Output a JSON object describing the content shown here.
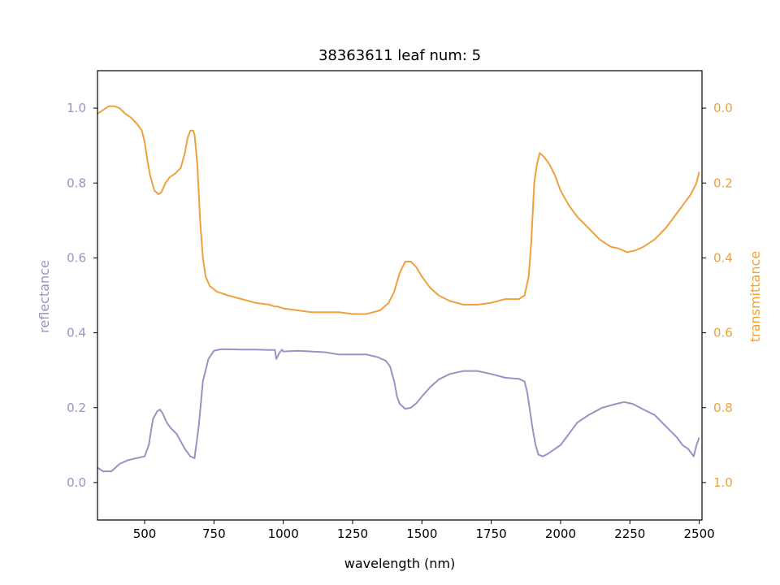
{
  "chart_data": {
    "type": "line",
    "title": "38363611 leaf num: 5",
    "xlabel": "wavelength (nm)",
    "ylabel": "reflectance",
    "ylabel_right": "transmittance",
    "xlim": [
      330,
      2510
    ],
    "ylim": [
      -0.1,
      1.1
    ],
    "ylim_right": [
      1.1,
      -0.1
    ],
    "right_axis_inverted": true,
    "grid": false,
    "x_ticks": [
      500,
      750,
      1000,
      1250,
      1500,
      1750,
      2000,
      2250,
      2500
    ],
    "x_tick_labels": [
      "500",
      "750",
      "1000",
      "1250",
      "1500",
      "1750",
      "2000",
      "2250",
      "2500"
    ],
    "y_ticks": [
      0.0,
      0.2,
      0.4,
      0.6,
      0.8,
      1.0
    ],
    "y_tick_labels": [
      "0.0",
      "0.2",
      "0.4",
      "0.6",
      "0.8",
      "1.0"
    ],
    "y_ticks_right": [
      0.0,
      0.2,
      0.4,
      0.6,
      0.8,
      1.0
    ],
    "y_tick_labels_right": [
      "0.0",
      "0.2",
      "0.4",
      "0.6",
      "0.8",
      "1.0"
    ],
    "colors": {
      "reflectance": "#9893c4",
      "transmittance": "#eea13d",
      "axis": "#000000"
    },
    "series": [
      {
        "axis": "left",
        "color": "#9893c4",
        "x": [
          330,
          350,
          380,
          410,
          440,
          470,
          500,
          515,
          530,
          545,
          555,
          565,
          580,
          595,
          615,
          630,
          645,
          665,
          680,
          695,
          710,
          730,
          750,
          775,
          800,
          850,
          900,
          950,
          970,
          975,
          985,
          995,
          1000,
          1050,
          1100,
          1150,
          1200,
          1250,
          1300,
          1340,
          1370,
          1385,
          1400,
          1410,
          1420,
          1440,
          1460,
          1480,
          1500,
          1530,
          1560,
          1600,
          1650,
          1700,
          1750,
          1800,
          1850,
          1870,
          1880,
          1890,
          1900,
          1905,
          1910,
          1920,
          1935,
          1950,
          1970,
          2000,
          2030,
          2060,
          2100,
          2150,
          2200,
          2230,
          2260,
          2300,
          2340,
          2380,
          2420,
          2440,
          2460,
          2480,
          2490,
          2500
        ],
        "y": [
          0.04,
          0.03,
          0.03,
          0.05,
          0.06,
          0.065,
          0.07,
          0.1,
          0.17,
          0.19,
          0.195,
          0.185,
          0.16,
          0.145,
          0.13,
          0.11,
          0.09,
          0.07,
          0.065,
          0.15,
          0.27,
          0.33,
          0.352,
          0.356,
          0.356,
          0.355,
          0.355,
          0.354,
          0.354,
          0.33,
          0.345,
          0.355,
          0.35,
          0.352,
          0.35,
          0.348,
          0.342,
          0.342,
          0.342,
          0.335,
          0.325,
          0.31,
          0.27,
          0.23,
          0.21,
          0.197,
          0.2,
          0.212,
          0.23,
          0.255,
          0.275,
          0.29,
          0.298,
          0.298,
          0.29,
          0.28,
          0.277,
          0.27,
          0.24,
          0.19,
          0.14,
          0.12,
          0.1,
          0.075,
          0.07,
          0.075,
          0.085,
          0.1,
          0.13,
          0.16,
          0.18,
          0.2,
          0.21,
          0.215,
          0.21,
          0.195,
          0.18,
          0.15,
          0.12,
          0.1,
          0.09,
          0.07,
          0.1,
          0.12
        ]
      },
      {
        "axis": "right",
        "color": "#eea13d",
        "x": [
          330,
          350,
          370,
          390,
          410,
          430,
          450,
          470,
          490,
          500,
          510,
          520,
          535,
          550,
          560,
          575,
          590,
          610,
          630,
          645,
          655,
          665,
          675,
          680,
          690,
          700,
          710,
          720,
          735,
          760,
          800,
          850,
          900,
          950,
          970,
          980,
          1000,
          1050,
          1100,
          1150,
          1200,
          1250,
          1300,
          1350,
          1380,
          1400,
          1420,
          1440,
          1460,
          1480,
          1500,
          1530,
          1560,
          1600,
          1650,
          1700,
          1750,
          1800,
          1850,
          1870,
          1885,
          1895,
          1905,
          1915,
          1925,
          1940,
          1960,
          1980,
          2000,
          2030,
          2060,
          2100,
          2140,
          2180,
          2210,
          2240,
          2270,
          2300,
          2340,
          2380,
          2420,
          2450,
          2470,
          2490,
          2500
        ],
        "y": [
          0.015,
          0.005,
          -0.005,
          -0.005,
          0.0,
          0.015,
          0.025,
          0.04,
          0.06,
          0.09,
          0.14,
          0.18,
          0.22,
          0.23,
          0.225,
          0.2,
          0.185,
          0.175,
          0.16,
          0.12,
          0.08,
          0.06,
          0.06,
          0.07,
          0.15,
          0.3,
          0.4,
          0.45,
          0.475,
          0.49,
          0.5,
          0.51,
          0.52,
          0.525,
          0.53,
          0.53,
          0.535,
          0.54,
          0.545,
          0.545,
          0.545,
          0.55,
          0.55,
          0.54,
          0.52,
          0.49,
          0.44,
          0.41,
          0.41,
          0.425,
          0.45,
          0.48,
          0.5,
          0.515,
          0.525,
          0.525,
          0.52,
          0.51,
          0.51,
          0.5,
          0.45,
          0.35,
          0.2,
          0.15,
          0.12,
          0.13,
          0.15,
          0.18,
          0.22,
          0.26,
          0.29,
          0.32,
          0.35,
          0.37,
          0.375,
          0.385,
          0.38,
          0.37,
          0.35,
          0.32,
          0.28,
          0.25,
          0.23,
          0.2,
          0.17
        ]
      }
    ]
  }
}
